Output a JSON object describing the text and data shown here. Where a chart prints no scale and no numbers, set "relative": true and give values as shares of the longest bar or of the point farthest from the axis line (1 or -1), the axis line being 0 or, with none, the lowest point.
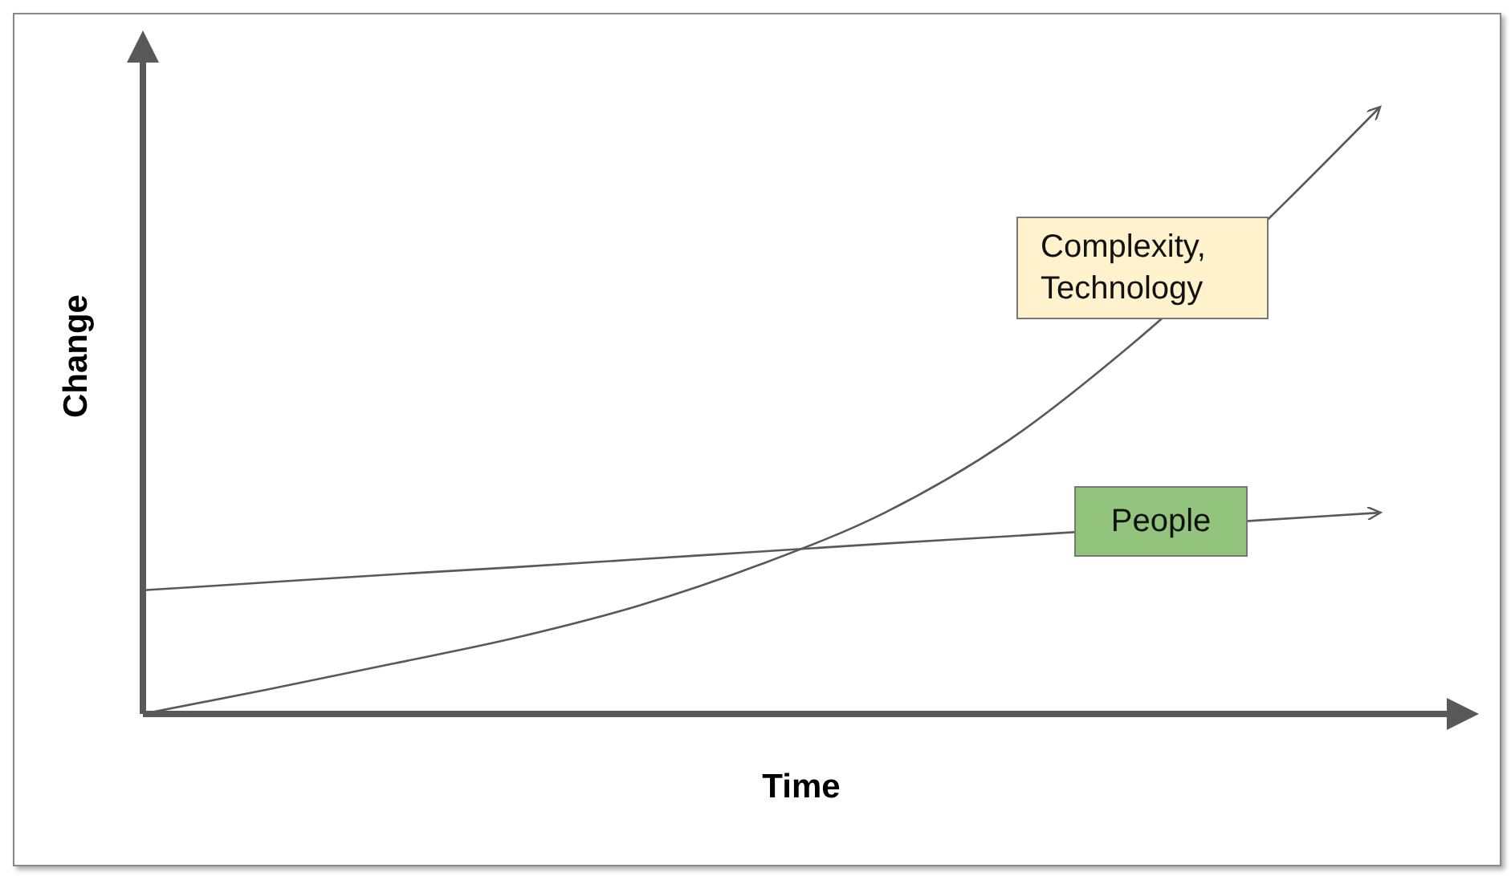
{
  "chart_data": {
    "type": "line",
    "relative": true,
    "xlabel": "Time",
    "ylabel": "Change",
    "categories": [
      null,
      null,
      null,
      null,
      null,
      null,
      null,
      null,
      null,
      null,
      null
    ],
    "grid": false,
    "marker": "none",
    "series": [
      {
        "name": "Complexity,\nTechnology",
        "color": "#595959",
        "values": [
          0,
          0.04,
          0.082,
          0.125,
          0.178,
          0.247,
          0.332,
          0.451,
          0.61,
          null,
          1
        ]
      },
      {
        "name": "People",
        "color": "#595959",
        "values": [
          0.204,
          0.217,
          0.23,
          0.242,
          0.255,
          0.268,
          0.281,
          0.293,
          null,
          0.319,
          0.332
        ]
      }
    ]
  }
}
